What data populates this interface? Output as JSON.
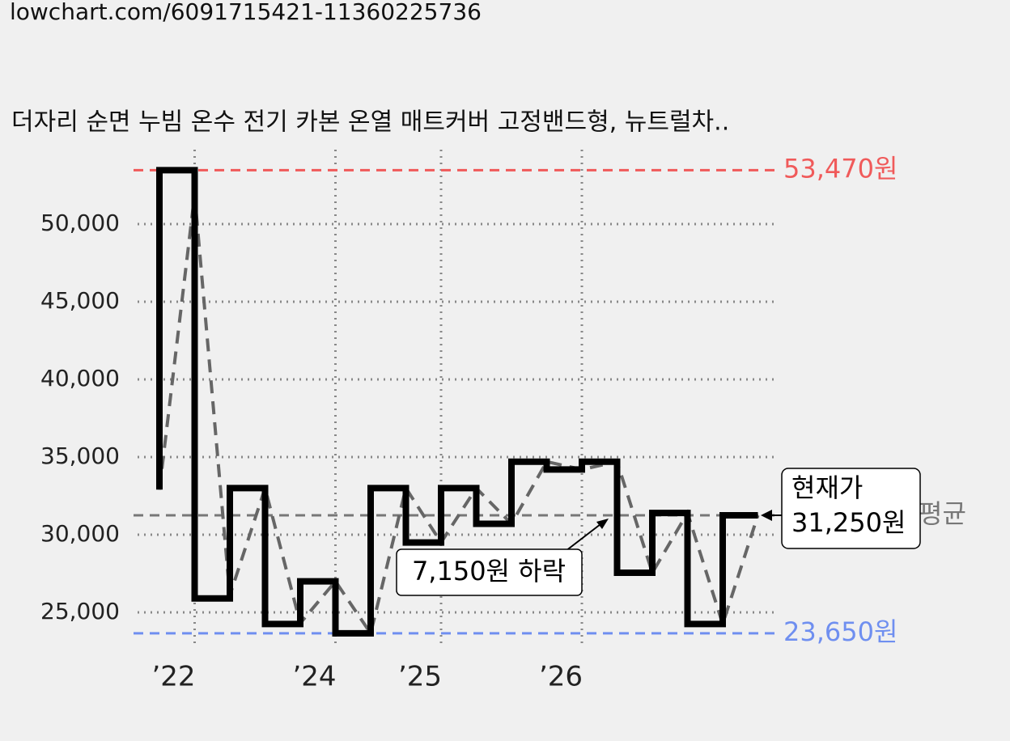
{
  "url": "lowchart.com/6091715421-11360225736",
  "chart_data": {
    "type": "step",
    "title": "더자리 순면 누빔 온수 전기 카본 온열 매트커버 고정밴드형, 뉴트럴차..",
    "x": [
      0,
      0,
      1,
      2,
      3,
      4,
      5,
      6,
      7,
      8,
      9,
      10,
      11,
      12,
      13,
      14,
      15,
      16,
      17
    ],
    "series": [
      {
        "color": "#000000",
        "values": [
          32900,
          53470,
          25900,
          33000,
          24250,
          27000,
          23650,
          33000,
          29500,
          33000,
          30700,
          34700,
          34200,
          34700,
          27550,
          31400,
          24250,
          31250,
          31250
        ]
      },
      {
        "color": "#666666",
        "dashed": true,
        "values": [
          32900,
          32900,
          51900,
          26100,
          33000,
          24300,
          27000,
          23650,
          33000,
          29500,
          33000,
          30700,
          34700,
          34200,
          34700,
          27550,
          31400,
          24250,
          31250
        ]
      }
    ],
    "xlim": [
      0,
      17
    ],
    "ylim": [
      22760,
      54790
    ],
    "xticks": [
      {
        "value": 1,
        "label": "’22"
      },
      {
        "value": 5,
        "label": "’24"
      },
      {
        "value": 8,
        "label": "’25"
      },
      {
        "value": 12,
        "label": "’26"
      }
    ],
    "yticks": [
      {
        "value": 25000,
        "label": "25,000"
      },
      {
        "value": 30000,
        "label": "30,000"
      },
      {
        "value": 35000,
        "label": "35,000"
      },
      {
        "value": 40000,
        "label": "40,000"
      },
      {
        "value": 45000,
        "label": "45,000"
      },
      {
        "value": 50000,
        "label": "50,000"
      }
    ],
    "grid": true,
    "max_line": {
      "value": 53470,
      "label": "53,470원",
      "color": "#f05a5a"
    },
    "min_line": {
      "value": 23650,
      "label": "23,650원",
      "color": "#6f8ff0"
    },
    "avg_line": {
      "value": 31250,
      "label": "평균",
      "color": "#777777"
    },
    "current": {
      "title": "현재가",
      "value": 31250,
      "label": "31,250원"
    },
    "change": {
      "label": "7,150원 하락"
    }
  }
}
